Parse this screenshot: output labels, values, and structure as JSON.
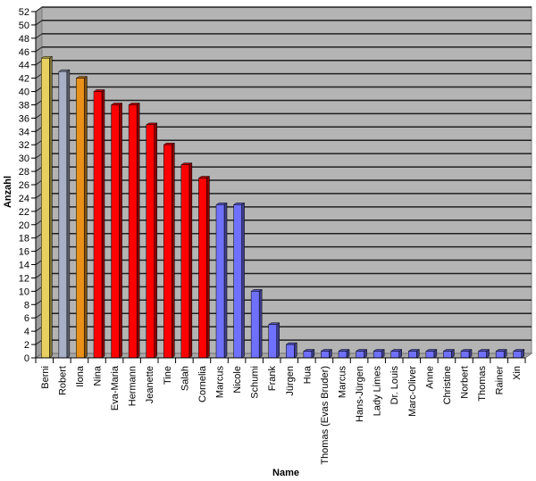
{
  "chart_data": {
    "type": "bar",
    "title": "",
    "xlabel": "Name",
    "ylabel": "Anzahl",
    "ylim": [
      0,
      52
    ],
    "ytick_step": 2,
    "grid": true,
    "legend": null,
    "categories": [
      "Berni",
      "Robert",
      "Ilona",
      "Nina",
      "Eva-Maria",
      "Hermann",
      "Jeanette",
      "Tine",
      "Salah",
      "Cornelia",
      "Marcus",
      "Nicole",
      "Schumi",
      "Frank",
      "Jürgen",
      "Hua",
      "Thomas (Evas Bruder)",
      "Marcus",
      "Hans-Jürgen",
      "Lady Limes",
      "Dr. Louis",
      "Marc-Oliver",
      "Anne",
      "Christine",
      "Norbert",
      "Thomas",
      "Rainer",
      "Xin"
    ],
    "values": [
      45,
      43,
      42,
      40,
      38,
      38,
      35,
      32,
      29,
      27,
      23,
      23,
      10,
      5,
      2,
      1,
      1,
      1,
      1,
      1,
      1,
      1,
      1,
      1,
      1,
      1,
      1,
      1
    ],
    "bar_colors": [
      "#e8d060",
      "#a8b0c8",
      "#e8901a",
      "#ff0000",
      "#ff0000",
      "#ff0000",
      "#ff0000",
      "#ff0000",
      "#ff0000",
      "#ff0000",
      "#7070ff",
      "#7070ff",
      "#7070ff",
      "#7070ff",
      "#7070ff",
      "#7070ff",
      "#7070ff",
      "#7070ff",
      "#7070ff",
      "#7070ff",
      "#7070ff",
      "#7070ff",
      "#7070ff",
      "#7070ff",
      "#7070ff",
      "#7070ff",
      "#7070ff",
      "#7070ff"
    ]
  },
  "colors": {
    "plot_background": "#b4b4b4",
    "wall": "#9c9c9c",
    "gridline": "#202020"
  }
}
